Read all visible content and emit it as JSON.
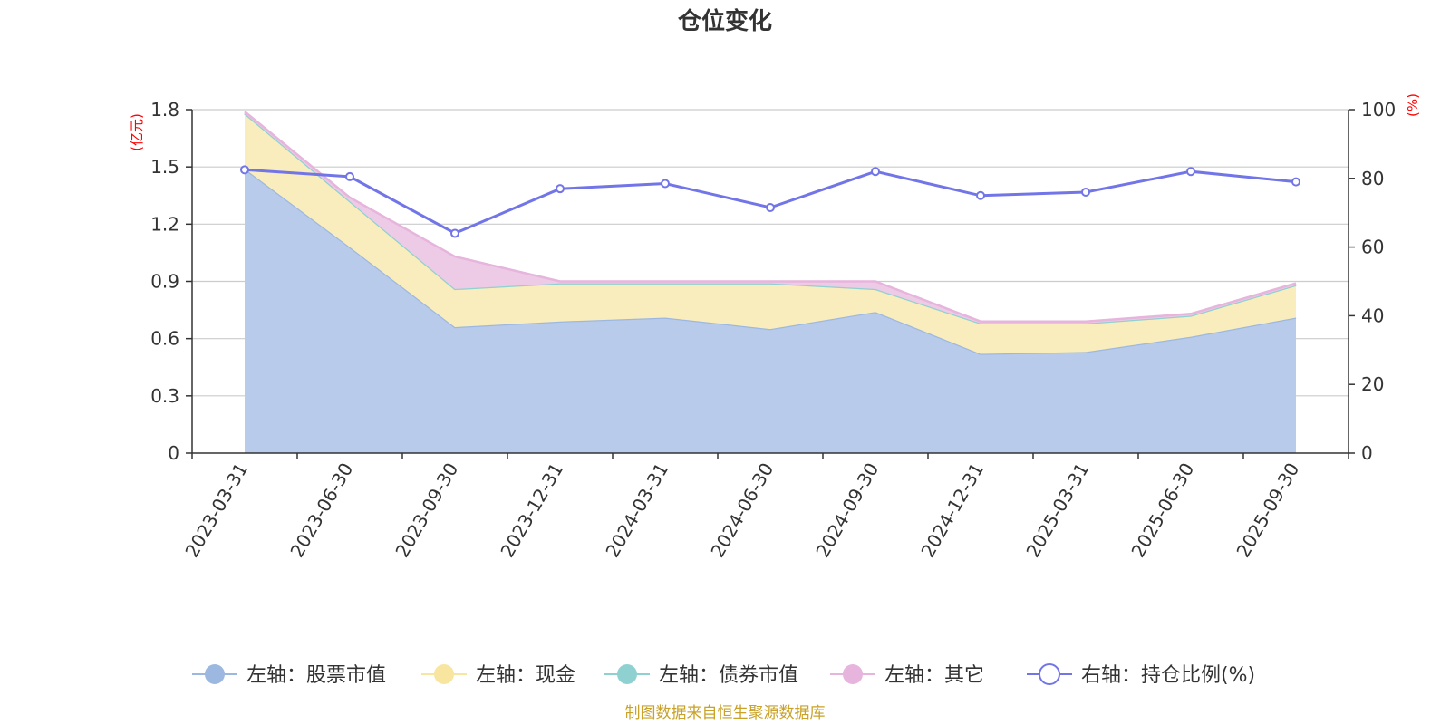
{
  "chart_data": {
    "type": "area",
    "title": "仓位变化",
    "categories": [
      "2023-03-31",
      "2023-06-30",
      "2023-09-30",
      "2023-12-31",
      "2024-03-31",
      "2024-06-30",
      "2024-09-30",
      "2024-12-31",
      "2025-03-31",
      "2025-06-30",
      "2025-09-30"
    ],
    "left_axis": {
      "unit": "(亿元)",
      "min": 0,
      "max": 1.8,
      "ticks": [
        "0",
        "0.3",
        "0.6",
        "0.9",
        "1.2",
        "1.5",
        "1.8"
      ],
      "tick_values": [
        0,
        0.3,
        0.6,
        0.9,
        1.2,
        1.5,
        1.8
      ]
    },
    "right_axis": {
      "unit": "(%)",
      "min": 0,
      "max": 100,
      "ticks": [
        "0",
        "20",
        "40",
        "60",
        "80",
        "100"
      ],
      "tick_values": [
        0,
        20,
        40,
        60,
        80,
        100
      ]
    },
    "stacked": true,
    "series": [
      {
        "name": "左轴：股票市值",
        "axis": "left",
        "kind": "area",
        "color": "#9db8e0",
        "fill": "#b8cbea",
        "values": [
          1.49,
          1.08,
          0.66,
          0.69,
          0.71,
          0.65,
          0.74,
          0.52,
          0.53,
          0.61,
          0.71
        ]
      },
      {
        "name": "左轴：现金",
        "axis": "left",
        "kind": "area",
        "color": "#f8e5a0",
        "fill": "#faedbd",
        "values": [
          0.29,
          0.24,
          0.2,
          0.2,
          0.18,
          0.24,
          0.12,
          0.16,
          0.15,
          0.11,
          0.17
        ]
      },
      {
        "name": "左轴：债券市值",
        "axis": "left",
        "kind": "area",
        "color": "#8fd1d1",
        "fill": "#b8e3e3",
        "values": [
          0,
          0,
          0,
          0,
          0,
          0,
          0,
          0,
          0,
          0,
          0
        ]
      },
      {
        "name": "左轴：其它",
        "axis": "left",
        "kind": "area",
        "color": "#e6b4dc",
        "fill": "#edcbe6",
        "values": [
          0.01,
          0.02,
          0.17,
          0.01,
          0.01,
          0.01,
          0.04,
          0.01,
          0.01,
          0.01,
          0.01
        ]
      },
      {
        "name": "右轴：持仓比例(%)",
        "axis": "right",
        "kind": "line",
        "color": "#7275e8",
        "values": [
          82.5,
          80.5,
          64,
          77,
          78.5,
          71.5,
          82,
          75,
          76,
          82,
          79
        ]
      }
    ],
    "legend_position": "bottom-center",
    "grid": true
  },
  "colors": {
    "axis": "#333333",
    "grid": "#cccccc",
    "unit_red": "#ff0000",
    "source_gold": "#c9a227"
  },
  "source_text": "制图数据来自恒生聚源数据库"
}
